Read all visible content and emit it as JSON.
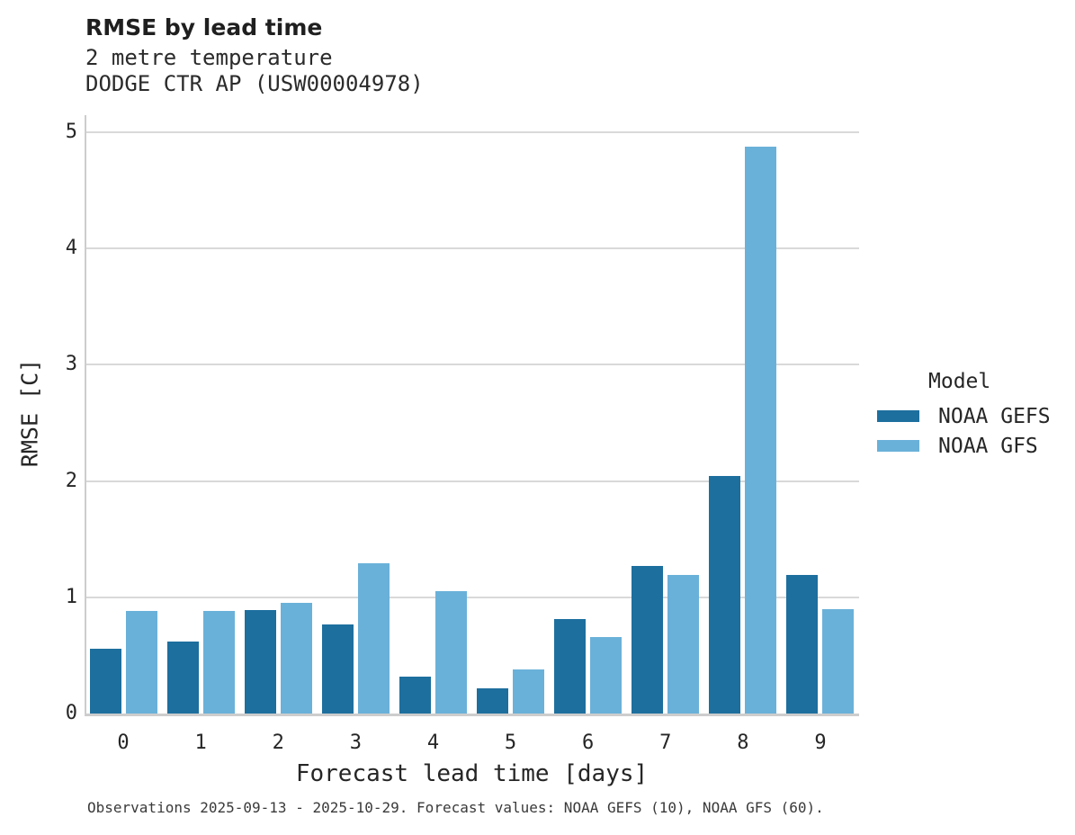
{
  "header": {
    "title": "RMSE by lead time",
    "subtitle_variable": "2 metre temperature",
    "subtitle_station": "DODGE CTR AP (USW00004978)"
  },
  "legend": {
    "title": "Model",
    "entries": [
      {
        "label": "NOAA GEFS",
        "color": "#1d6f9e"
      },
      {
        "label": "NOAA GFS",
        "color": "#6ab1d9"
      }
    ]
  },
  "footer": {
    "caption": "Observations 2025-09-13 - 2025-10-29. Forecast values: NOAA GEFS (10), NOAA GFS (60)."
  },
  "colors": {
    "gefs_bar": "#1d6f9e",
    "gfs_bar": "#6ab1d9",
    "gridline": "#d9d9d9",
    "axis": "#cdcdcd",
    "text": "#262626"
  },
  "chart_data": {
    "type": "bar",
    "title": "RMSE by lead time",
    "subtitle": [
      "2 metre temperature",
      "DODGE CTR AP (USW00004978)"
    ],
    "categories": [
      "0",
      "1",
      "2",
      "3",
      "4",
      "5",
      "6",
      "7",
      "8",
      "9"
    ],
    "series": [
      {
        "name": "NOAA GEFS",
        "color": "#1d6f9e",
        "values": [
          0.56,
          0.62,
          0.89,
          0.77,
          0.32,
          0.22,
          0.81,
          1.27,
          2.04,
          1.19
        ]
      },
      {
        "name": "NOAA GFS",
        "color": "#6ab1d9",
        "values": [
          0.88,
          0.88,
          0.95,
          1.29,
          1.05,
          0.38,
          0.66,
          1.19,
          4.88,
          0.9
        ]
      }
    ],
    "xlabel": "Forecast lead time [days]",
    "ylabel": "RMSE [C]",
    "ylim": [
      0,
      5
    ],
    "yticks": [
      0,
      1,
      2,
      3,
      4,
      5
    ],
    "grid": "horizontal",
    "legend_title": "Model",
    "legend_position": "right"
  }
}
